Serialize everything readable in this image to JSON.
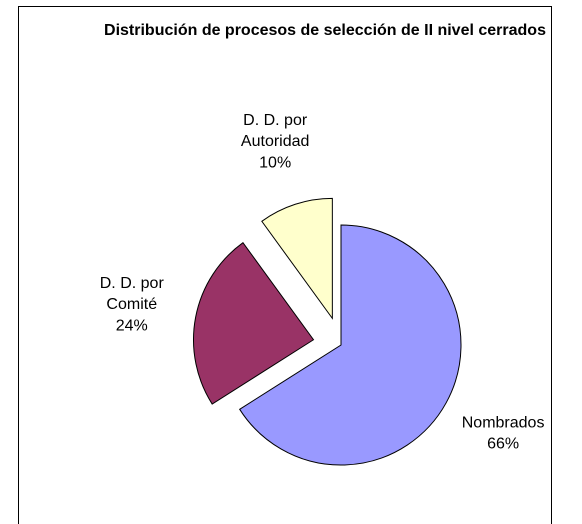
{
  "chart_data": {
    "type": "pie",
    "title": "Distribución de procesos de selección de II nivel cerrados",
    "categories": [
      "Nombrados",
      "D. D. por Comité",
      "D. D. por Autoridad"
    ],
    "values": [
      66,
      24,
      10
    ],
    "value_labels": [
      "66%",
      "24%",
      "10%"
    ],
    "colors": [
      "#9999ff",
      "#993366",
      "#ffffcc"
    ]
  }
}
